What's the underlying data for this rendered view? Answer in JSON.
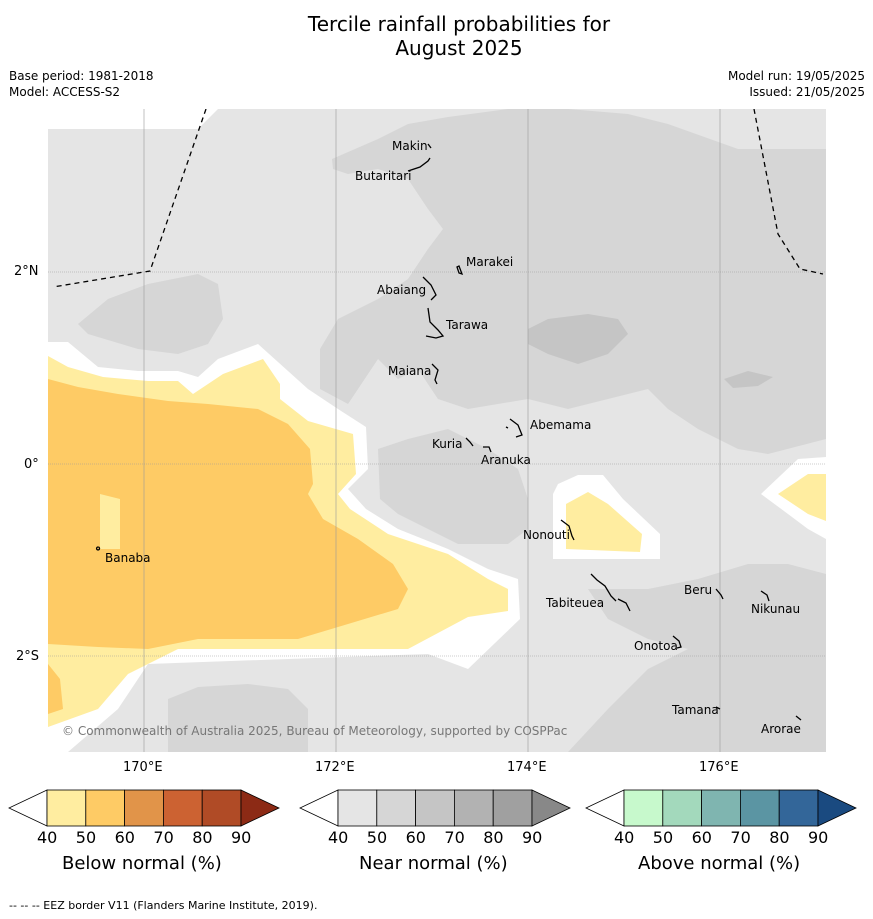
{
  "title_line1": "Tercile rainfall probabilities for",
  "title_line2": "August 2025",
  "meta": {
    "base_period": "Base period: 1981-2018",
    "model": "Model: ACCESS-S2",
    "model_run": "Model run: 19/05/2025",
    "issued": "Issued: 21/05/2025"
  },
  "axes": {
    "lat_labels": [
      "2°N",
      "0°",
      "2°S"
    ],
    "lon_labels": [
      "170°E",
      "172°E",
      "174°E",
      "176°E"
    ]
  },
  "places": [
    {
      "name": "Makin"
    },
    {
      "name": "Butaritari"
    },
    {
      "name": "Marakei"
    },
    {
      "name": "Abaiang"
    },
    {
      "name": "Tarawa"
    },
    {
      "name": "Maiana"
    },
    {
      "name": "Abemama"
    },
    {
      "name": "Kuria"
    },
    {
      "name": "Aranuka"
    },
    {
      "name": "Nonouti"
    },
    {
      "name": "Banaba"
    },
    {
      "name": "Tabiteuea"
    },
    {
      "name": "Beru"
    },
    {
      "name": "Nikunau"
    },
    {
      "name": "Onotoa"
    },
    {
      "name": "Tamana"
    },
    {
      "name": "Arorae"
    }
  ],
  "copyright": "© Commonwealth of Australia 2025, Bureau of Meteorology, supported by COSPPac",
  "colorbars": [
    {
      "label": "Below normal (%)",
      "ticks": [
        "40",
        "50",
        "60",
        "70",
        "80",
        "90"
      ],
      "colors": [
        "#ffffff",
        "#ffeda0",
        "#fecb65",
        "#e19449",
        "#cc6232",
        "#b04b26",
        "#8c2a15"
      ]
    },
    {
      "label": "Near normal (%)",
      "ticks": [
        "40",
        "50",
        "60",
        "70",
        "80",
        "90"
      ],
      "colors": [
        "#ffffff",
        "#e5e5e5",
        "#d6d6d6",
        "#c5c5c5",
        "#b2b2b2",
        "#a0a0a0",
        "#888888"
      ]
    },
    {
      "label": "Above normal (%)",
      "ticks": [
        "40",
        "50",
        "60",
        "70",
        "80",
        "90"
      ],
      "colors": [
        "#ffffff",
        "#c7f9cc",
        "#a3d9bc",
        "#7fb5b0",
        "#5b95a3",
        "#336699",
        "#1a4a80"
      ]
    }
  ],
  "footer": "-- -- -- EEZ border V11 (Flanders Marine Institute, 2019)."
}
